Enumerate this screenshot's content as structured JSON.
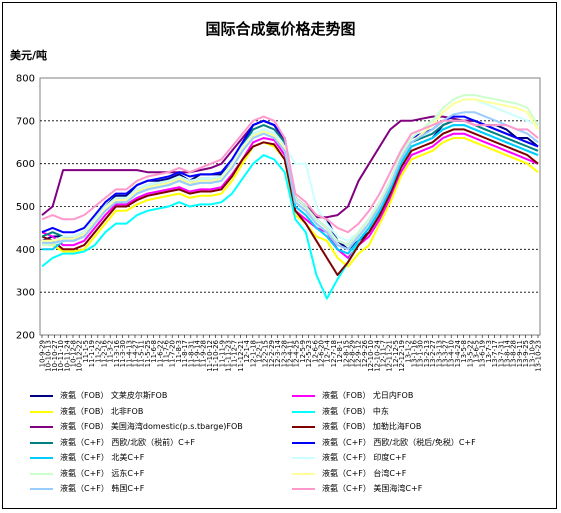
{
  "page": {
    "title": "国际合成氨价格走势图",
    "unit": "美元/吨"
  },
  "colors": {
    "background": "#ffffff",
    "grid": "#000000"
  },
  "chart_data": {
    "type": "line",
    "title": "国际合成氨价格走势图",
    "ylabel": "美元/吨",
    "xlabel": "",
    "ylim": [
      200,
      800
    ],
    "y_ticks": [
      200,
      300,
      400,
      500,
      600,
      700,
      800
    ],
    "grid": true,
    "legend_position": "bottom",
    "x_tick_labels": [
      "10-9-29",
      "10-10-13",
      "10-10-27",
      "10-11-10",
      "10-11-24",
      "10-12-8",
      "10-12-22",
      "11-1-5",
      "11-1-19",
      "11-2-2",
      "11-2-16",
      "11-3-2",
      "11-3-16",
      "11-3-30",
      "11-4-13",
      "11-4-27",
      "11-5-11",
      "11-5-25",
      "11-6-8",
      "11-6-22",
      "11-7-6",
      "11-7-20",
      "11-8-3",
      "11-8-17",
      "11-8-31",
      "11-9-14",
      "11-9-28",
      "11-10-12",
      "11-10-26",
      "11-11-9",
      "11-11-23",
      "11-12-7",
      "11-12-21",
      "12-1-4",
      "12-1-18",
      "12-2-1",
      "12-2-15",
      "12-2-29",
      "12-3-14",
      "12-3-28",
      "12-4-11",
      "12-4-25",
      "12-5-9",
      "12-5-23",
      "12-6-6",
      "12-6-20",
      "12-7-4",
      "12-7-18",
      "12-8-1",
      "12-8-15",
      "12-8-29",
      "12-9-12",
      "12-9-26",
      "12-10-10",
      "12-10-24",
      "12-11-7",
      "12-11-21",
      "12-12-5",
      "12-12-19",
      "13-1-2",
      "13-1-16",
      "13-1-30",
      "13-2-13",
      "13-2-27",
      "13-3-13",
      "13-3-27",
      "13-4-10",
      "13-4-24",
      "13-5-8",
      "13-5-22",
      "13-6-5",
      "13-6-19",
      "13-7-3",
      "13-7-17",
      "13-7-31",
      "13-8-14",
      "13-8-28",
      "13-9-11",
      "13-9-25",
      "13-10-9",
      "13-10-23"
    ],
    "x_index": [
      0,
      2,
      4,
      6,
      8,
      10,
      12,
      14,
      16,
      18,
      20,
      22,
      24,
      26,
      28,
      30,
      32,
      34,
      36,
      38,
      40,
      42,
      44,
      46,
      48,
      50,
      52,
      54,
      56,
      58,
      60,
      62,
      64,
      66,
      68,
      70,
      72,
      74,
      76,
      78,
      80,
      82,
      84,
      86,
      88,
      90,
      92,
      94,
      96,
      98,
      100,
      102,
      104,
      106,
      108,
      110,
      112,
      114,
      116,
      118,
      120,
      122,
      124,
      126,
      128,
      130,
      132,
      134,
      136,
      138,
      140,
      142,
      144,
      146,
      148,
      150,
      152,
      154,
      156,
      158,
      160
    ],
    "series": [
      {
        "name": "液氨（FOB） 文莱皮尔斯FOB",
        "color": "#000080",
        "values": [
          420,
          430,
          430,
          425,
          430,
          470,
          500,
          525,
          525,
          550,
          560,
          560,
          565,
          575,
          560,
          575,
          575,
          575,
          600,
          640,
          690,
          700,
          690,
          660,
          520,
          500,
          480,
          470,
          420,
          400,
          420,
          440,
          480,
          540,
          600,
          640,
          650,
          660,
          690,
          700,
          700,
          700,
          690,
          690,
          680,
          660,
          660,
          640
        ]
      },
      {
        "name": "液氨（FOB） 尤日内FOB",
        "color": "#ff00ff",
        "values": [
          440,
          430,
          410,
          410,
          420,
          450,
          480,
          505,
          505,
          520,
          530,
          535,
          540,
          545,
          535,
          540,
          540,
          545,
          575,
          610,
          650,
          660,
          655,
          620,
          490,
          470,
          450,
          440,
          400,
          380,
          410,
          430,
          470,
          520,
          580,
          620,
          630,
          640,
          660,
          670,
          670,
          660,
          650,
          640,
          630,
          620,
          610,
          600
        ]
      },
      {
        "name": "液氨（FOB） 北非FOB",
        "color": "#ffff00",
        "values": [
          420,
          410,
          395,
          395,
          400,
          430,
          460,
          490,
          490,
          505,
          515,
          520,
          525,
          530,
          520,
          525,
          525,
          530,
          560,
          600,
          640,
          650,
          640,
          610,
          480,
          460,
          430,
          420,
          380,
          360,
          390,
          410,
          460,
          510,
          570,
          610,
          620,
          630,
          650,
          660,
          660,
          650,
          640,
          630,
          620,
          610,
          600,
          580
        ]
      },
      {
        "name": "液氨（FOB） 中东",
        "color": "#00ffff",
        "values": [
          360,
          380,
          390,
          390,
          395,
          410,
          440,
          460,
          460,
          480,
          490,
          495,
          500,
          510,
          500,
          505,
          505,
          510,
          530,
          565,
          600,
          620,
          610,
          580,
          470,
          440,
          340,
          285,
          330,
          370,
          420,
          450,
          490,
          540,
          600,
          640,
          650,
          660,
          680,
          690,
          690,
          680,
          670,
          660,
          650,
          640,
          630,
          620
        ]
      },
      {
        "name": "液氨（FOB） 美国海湾domestic(p.s.tbarge)FOB",
        "color": "#800080",
        "values": [
          480,
          500,
          585,
          585,
          585,
          585,
          585,
          585,
          585,
          585,
          580,
          580,
          580,
          580,
          580,
          585,
          590,
          600,
          630,
          660,
          690,
          700,
          690,
          650,
          520,
          500,
          475,
          475,
          480,
          500,
          560,
          600,
          640,
          680,
          700,
          700,
          705,
          710,
          710,
          705,
          700,
          700,
          690,
          680,
          670,
          660,
          650,
          640
        ]
      },
      {
        "name": "液氨（FOB） 加勒比海FOB",
        "color": "#800000",
        "values": [
          430,
          420,
          400,
          400,
          410,
          440,
          470,
          500,
          500,
          515,
          525,
          530,
          535,
          540,
          530,
          535,
          535,
          540,
          570,
          610,
          640,
          650,
          645,
          610,
          490,
          460,
          420,
          380,
          340,
          370,
          410,
          440,
          480,
          530,
          590,
          630,
          640,
          650,
          670,
          680,
          680,
          670,
          660,
          650,
          640,
          630,
          620,
          600
        ]
      },
      {
        "name": "液氨（C+F） 西欧/北欧（税前）C+F",
        "color": "#008080",
        "values": [
          430,
          440,
          430,
          430,
          440,
          470,
          500,
          520,
          520,
          540,
          550,
          555,
          560,
          570,
          560,
          565,
          565,
          570,
          600,
          640,
          680,
          690,
          680,
          650,
          510,
          490,
          460,
          440,
          410,
          400,
          430,
          460,
          500,
          550,
          610,
          650,
          660,
          670,
          690,
          700,
          700,
          690,
          680,
          670,
          660,
          650,
          640,
          630
        ]
      },
      {
        "name": "液氨（C+F） 西欧/北欧（税后/免税）C+F",
        "color": "#0000ff",
        "values": [
          440,
          450,
          440,
          440,
          450,
          480,
          510,
          530,
          530,
          550,
          560,
          565,
          570,
          580,
          570,
          575,
          575,
          580,
          610,
          650,
          690,
          700,
          690,
          660,
          520,
          500,
          470,
          450,
          420,
          410,
          440,
          470,
          510,
          560,
          620,
          660,
          670,
          680,
          700,
          710,
          710,
          700,
          690,
          680,
          670,
          660,
          650,
          640
        ]
      },
      {
        "name": "液氨（C+F） 北美C+F",
        "color": "#00ccff",
        "values": [
          400,
          400,
          420,
          420,
          430,
          460,
          490,
          510,
          510,
          530,
          540,
          545,
          550,
          560,
          550,
          555,
          555,
          560,
          590,
          630,
          670,
          680,
          670,
          640,
          500,
          480,
          450,
          430,
          400,
          390,
          420,
          450,
          490,
          540,
          600,
          640,
          650,
          660,
          680,
          690,
          690,
          680,
          670,
          660,
          650,
          640,
          630,
          620
        ]
      },
      {
        "name": "液氨（C+F） 印度C+F",
        "color": "#ccffff",
        "values": [
          420,
          420,
          430,
          430,
          440,
          470,
          500,
          520,
          520,
          540,
          550,
          555,
          560,
          570,
          560,
          565,
          565,
          570,
          600,
          640,
          670,
          680,
          670,
          640,
          600,
          600,
          500,
          460,
          430,
          420,
          440,
          470,
          510,
          560,
          620,
          660,
          680,
          700,
          720,
          740,
          750,
          750,
          740,
          730,
          720,
          710,
          700,
          690
        ]
      },
      {
        "name": "液氨（C+F） 远东C+F",
        "color": "#ccffcc",
        "values": [
          410,
          410,
          420,
          420,
          430,
          460,
          490,
          510,
          510,
          530,
          540,
          545,
          550,
          560,
          550,
          555,
          555,
          560,
          590,
          630,
          660,
          670,
          660,
          630,
          520,
          500,
          470,
          450,
          420,
          410,
          440,
          470,
          510,
          560,
          620,
          660,
          680,
          700,
          730,
          750,
          760,
          760,
          755,
          750,
          745,
          740,
          730,
          690
        ]
      },
      {
        "name": "液氨（C+F） 台湾C+F",
        "color": "#ffff99",
        "values": [
          420,
          420,
          425,
          425,
          435,
          465,
          495,
          515,
          515,
          535,
          545,
          550,
          555,
          565,
          555,
          560,
          560,
          565,
          595,
          635,
          665,
          675,
          665,
          635,
          510,
          490,
          460,
          440,
          410,
          400,
          430,
          460,
          500,
          550,
          610,
          650,
          670,
          690,
          720,
          740,
          750,
          750,
          745,
          740,
          735,
          730,
          720,
          680
        ]
      },
      {
        "name": "液氨（C+F） 韩国C+F",
        "color": "#99ccff",
        "values": [
          415,
          415,
          420,
          420,
          430,
          460,
          490,
          510,
          510,
          530,
          540,
          545,
          550,
          560,
          550,
          555,
          555,
          560,
          590,
          630,
          660,
          670,
          660,
          630,
          510,
          490,
          460,
          440,
          410,
          400,
          430,
          460,
          500,
          550,
          610,
          650,
          665,
          680,
          700,
          715,
          720,
          720,
          710,
          700,
          690,
          680,
          670,
          650
        ]
      },
      {
        "name": "液氨（C+F） 美国海湾C+F",
        "color": "#ff99cc",
        "values": [
          470,
          480,
          470,
          470,
          480,
          500,
          520,
          540,
          540,
          560,
          570,
          575,
          580,
          590,
          580,
          590,
          600,
          610,
          640,
          670,
          700,
          710,
          700,
          660,
          530,
          510,
          480,
          470,
          450,
          440,
          460,
          490,
          530,
          580,
          630,
          670,
          680,
          690,
          700,
          700,
          700,
          690,
          690,
          690,
          690,
          680,
          680,
          660
        ]
      }
    ]
  }
}
